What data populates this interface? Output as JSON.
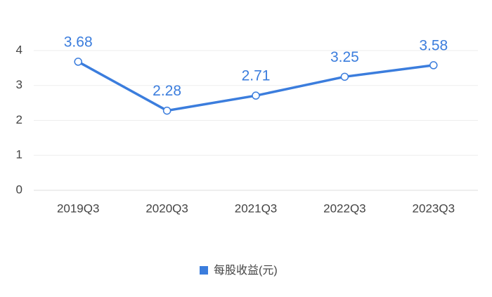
{
  "chart_data": {
    "type": "line",
    "categories": [
      "2019Q3",
      "2020Q3",
      "2021Q3",
      "2022Q3",
      "2023Q3"
    ],
    "series": [
      {
        "name": "每股收益(元)",
        "color": "#3b7ddd",
        "values": [
          3.68,
          2.28,
          2.71,
          3.25,
          3.58
        ]
      }
    ],
    "ylim": [
      0,
      4
    ],
    "yticks": [
      0,
      1,
      2,
      3,
      4
    ],
    "grid": true,
    "legend": "bottom"
  }
}
